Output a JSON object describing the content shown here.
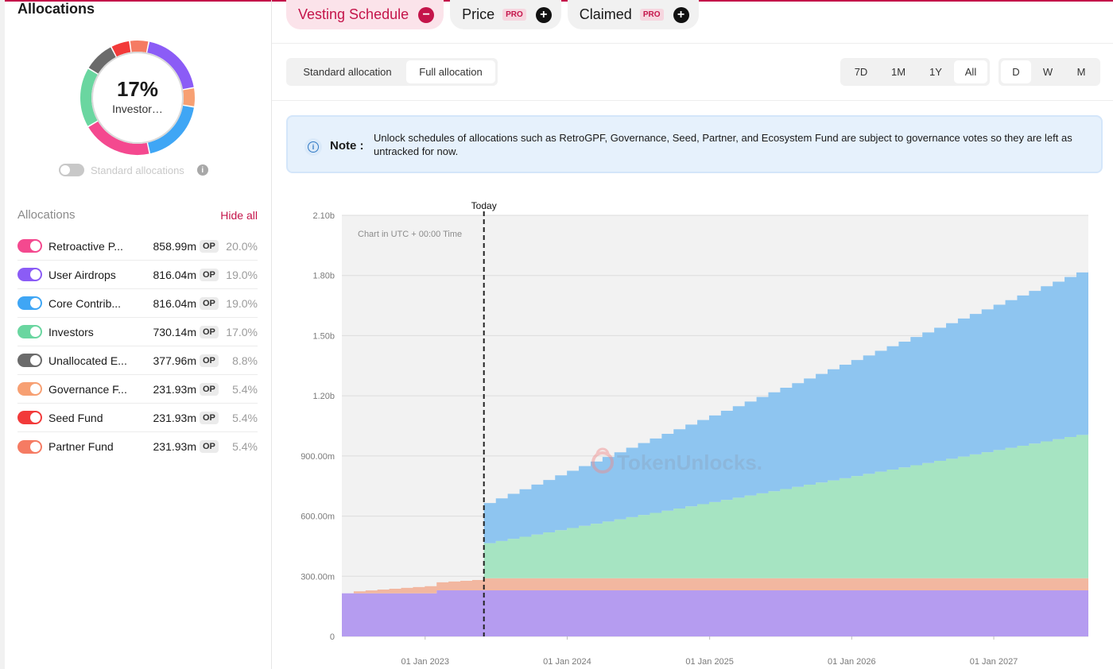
{
  "sidebar": {
    "title": "Allocations",
    "donut": {
      "percent": "17%",
      "label": "Investor…",
      "segments": [
        {
          "name": "User Airdrops",
          "pct": 19.0,
          "color": "#8b5cf6"
        },
        {
          "name": "Governance Fund",
          "pct": 5.4,
          "color": "#f7a073"
        },
        {
          "name": "Core Contributors",
          "pct": 19.0,
          "color": "#3fa6f5"
        },
        {
          "name": "Retroactive Public Goods",
          "pct": 20.0,
          "color": "#f4498f"
        },
        {
          "name": "Investors",
          "pct": 17.0,
          "color": "#6ad6a0"
        },
        {
          "name": "Unallocated Ecosystem",
          "pct": 8.8,
          "color": "#6b6b6b"
        },
        {
          "name": "Seed Fund",
          "pct": 5.4,
          "color": "#f23a3a"
        },
        {
          "name": "Partner Fund",
          "pct": 5.4,
          "color": "#f57b63"
        }
      ]
    },
    "standard_toggle_label": "Standard allocations",
    "list_title": "Allocations",
    "hide_all": "Hide all",
    "items": [
      {
        "label": "Retroactive P...",
        "amount": "858.99m",
        "unit": "OP",
        "pct": "20.0%",
        "color": "#f4498f"
      },
      {
        "label": "User Airdrops",
        "amount": "816.04m",
        "unit": "OP",
        "pct": "19.0%",
        "color": "#8b5cf6"
      },
      {
        "label": "Core Contrib...",
        "amount": "816.04m",
        "unit": "OP",
        "pct": "19.0%",
        "color": "#3fa6f5"
      },
      {
        "label": "Investors",
        "amount": "730.14m",
        "unit": "OP",
        "pct": "17.0%",
        "color": "#6ad6a0"
      },
      {
        "label": "Unallocated E...",
        "amount": "377.96m",
        "unit": "OP",
        "pct": "8.8%",
        "color": "#6b6b6b"
      },
      {
        "label": "Governance F...",
        "amount": "231.93m",
        "unit": "OP",
        "pct": "5.4%",
        "color": "#f7a073"
      },
      {
        "label": "Seed Fund",
        "amount": "231.93m",
        "unit": "OP",
        "pct": "5.4%",
        "color": "#f23a3a"
      },
      {
        "label": "Partner Fund",
        "amount": "231.93m",
        "unit": "OP",
        "pct": "5.4%",
        "color": "#f57b63"
      }
    ]
  },
  "tabs": [
    {
      "label": "Vesting Schedule",
      "badge": "",
      "action": "minus"
    },
    {
      "label": "Price",
      "badge": "PRO",
      "action": "plus"
    },
    {
      "label": "Claimed",
      "badge": "PRO",
      "action": "plus"
    }
  ],
  "allocation_mode": {
    "options": [
      "Standard allocation",
      "Full allocation"
    ],
    "selected": "Full allocation"
  },
  "range": {
    "options": [
      "7D",
      "1M",
      "1Y",
      "All"
    ],
    "selected": "All"
  },
  "granularity": {
    "options": [
      "D",
      "W",
      "M"
    ],
    "selected": "D"
  },
  "note": {
    "label": "Note :",
    "text": "Unlock schedules of allocations such as RetroGPF, Governance, Seed, Partner, and Ecosystem Fund are subject to governance votes so they are left as untracked for now."
  },
  "chart_data": {
    "type": "area",
    "stacked": true,
    "step": true,
    "subtitle": "Chart in UTC + 00:00 Time",
    "watermark": "TokenUnlocks.",
    "today_label": "Today",
    "today_date": "2023-06-01",
    "x_range": [
      "2022-06-01",
      "2027-09-01"
    ],
    "x_ticks": [
      "01 Jan 2023",
      "01 Jan 2024",
      "01 Jan 2025",
      "01 Jan 2026",
      "01 Jan 2027"
    ],
    "ylim": [
      0,
      2100000000
    ],
    "y_ticks": [
      "0",
      "300.00m",
      "600.00m",
      "900.00m",
      "1.20b",
      "1.50b",
      "1.80b",
      "2.10b"
    ],
    "grid": true,
    "series": [
      {
        "color": "#b59cf0",
        "points": [
          [
            "2022-06-01",
            215000000
          ],
          [
            "2023-01-01",
            215000000
          ],
          [
            "2023-01-01",
            230000000
          ],
          [
            "2027-09-01",
            230000000
          ]
        ]
      },
      {
        "color": "#f2b7a0",
        "points": [
          [
            "2022-06-01",
            0
          ],
          [
            "2022-07-01",
            10000000
          ],
          [
            "2023-02-01",
            40000000
          ],
          [
            "2023-05-31",
            55000000
          ],
          [
            "2023-06-01",
            60000000
          ],
          [
            "2027-09-01",
            60000000
          ]
        ]
      },
      {
        "color": "#a6e4c2",
        "points": [
          [
            "2023-05-31",
            0
          ],
          [
            "2023-06-01",
            175000000
          ],
          [
            "2027-08-01",
            715000000
          ],
          [
            "2027-09-01",
            720000000
          ]
        ]
      },
      {
        "color": "#8ec5f0",
        "points": [
          [
            "2023-05-31",
            0
          ],
          [
            "2023-06-01",
            200000000
          ],
          [
            "2027-08-01",
            810000000
          ],
          [
            "2027-09-01",
            815000000
          ]
        ]
      }
    ]
  }
}
